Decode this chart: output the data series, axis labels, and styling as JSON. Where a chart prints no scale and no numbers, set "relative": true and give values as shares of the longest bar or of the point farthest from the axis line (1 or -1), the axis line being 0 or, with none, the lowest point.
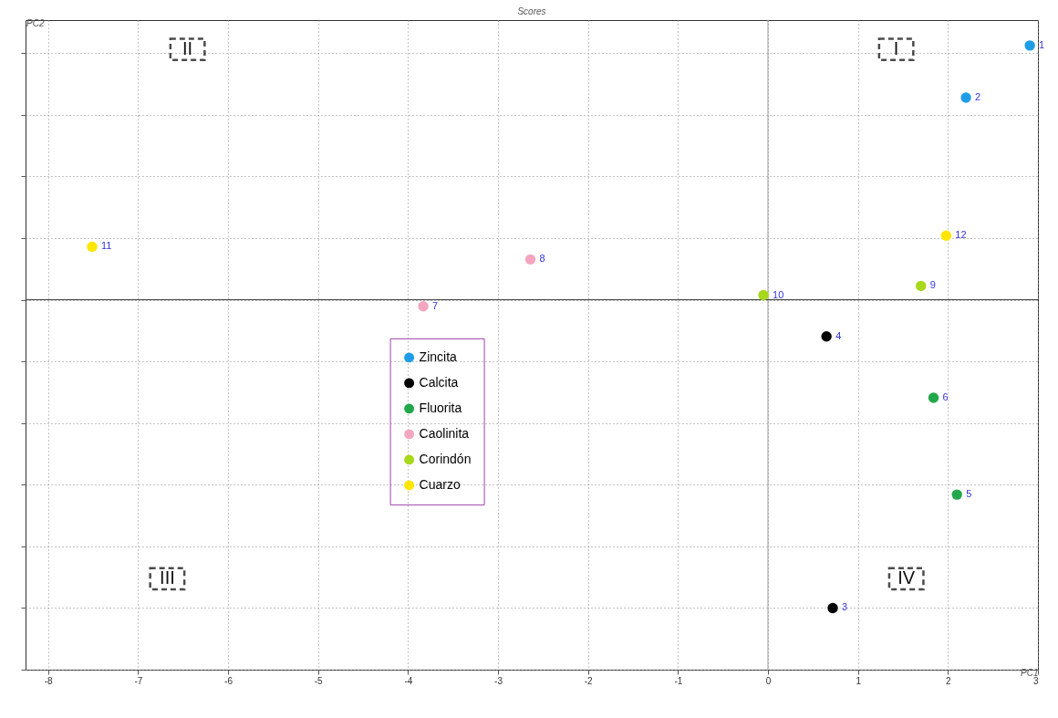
{
  "chart_data": {
    "type": "scatter",
    "title": "Scores",
    "xlabel": "PC1",
    "ylabel": "PC2",
    "relative": true,
    "xlim": [
      -8.25,
      3.0
    ],
    "xticks": [
      -8,
      -7,
      -6,
      -5,
      -4,
      -3,
      -2,
      -1,
      0,
      1,
      2,
      3
    ],
    "grid": true,
    "legend": "left",
    "marker": "circle",
    "tick_labels": "x",
    "series": [
      {
        "name": "Zincita",
        "color": "#1e9de6",
        "x": [
          2.91,
          2.2
        ],
        "values": [
          0.825,
          0.656
        ]
      },
      {
        "name": "Calcita",
        "color": "#000000",
        "x": [
          0.72,
          0.65
        ],
        "values": [
          -1,
          -0.119
        ]
      },
      {
        "name": "Fluorita",
        "color": "#22a84a",
        "x": [
          2.1,
          1.84
        ],
        "values": [
          -0.632,
          -0.318
        ]
      },
      {
        "name": "Caolinita",
        "color": "#f4a6c0",
        "x": [
          -3.83,
          -2.64
        ],
        "values": [
          -0.021,
          0.131
        ]
      },
      {
        "name": "Corindón",
        "color": "#a8d81a",
        "x": [
          1.7,
          -0.05
        ],
        "values": [
          0.045,
          0.015
        ]
      },
      {
        "name": "Cuarzo",
        "color": "#ffe600",
        "x": [
          -7.51,
          1.98
        ],
        "values": [
          0.172,
          0.208
        ]
      }
    ],
    "ref_lines": [
      {
        "axis": "x",
        "value": 0
      },
      {
        "axis": "y",
        "value": 0
      }
    ],
    "annotations": [
      "I",
      "II",
      "III",
      "IV",
      {
        "text": "1",
        "x": 2.91,
        "y": 0.825
      },
      {
        "text": "2",
        "x": 2.2,
        "y": 0.656
      },
      {
        "text": "3",
        "x": 0.72,
        "y": -1
      },
      {
        "text": "4",
        "x": 0.65,
        "y": -0.119
      },
      {
        "text": "5",
        "x": 2.1,
        "y": -0.632
      },
      {
        "text": "6",
        "x": 1.84,
        "y": -0.318
      },
      {
        "text": "7",
        "x": -3.83,
        "y": -0.021
      },
      {
        "text": "8",
        "x": -2.64,
        "y": 0.131
      },
      {
        "text": "9",
        "x": 1.7,
        "y": 0.045
      },
      {
        "text": "10",
        "x": -0.05,
        "y": 0.015
      },
      {
        "text": "11",
        "x": -7.51,
        "y": 0.172
      },
      {
        "text": "12",
        "x": 1.98,
        "y": 0.208
      }
    ]
  }
}
